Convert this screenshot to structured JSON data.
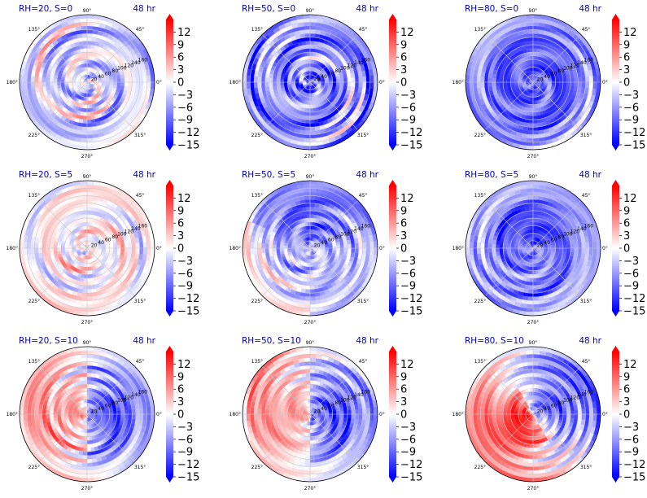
{
  "chart_data": {
    "type": "polar-heatmap-grid",
    "panels": [
      {
        "title_left": "RH=20, S=0",
        "title_right": "48 hr",
        "rh": 20,
        "s": 0,
        "pattern": "mixed_weak"
      },
      {
        "title_left": "RH=50, S=0",
        "title_right": "48 hr",
        "rh": 50,
        "s": 0,
        "pattern": "blue_spiral"
      },
      {
        "title_left": "RH=80, S=0",
        "title_right": "48 hr",
        "rh": 80,
        "s": 0,
        "pattern": "deep_blue"
      },
      {
        "title_left": "RH=20, S=5",
        "title_right": "48 hr",
        "rh": 20,
        "s": 5,
        "pattern": "pale_mixed"
      },
      {
        "title_left": "RH=50, S=5",
        "title_right": "48 hr",
        "rh": 50,
        "s": 5,
        "pattern": "blue_north_red_sw"
      },
      {
        "title_left": "RH=80, S=5",
        "title_right": "48 hr",
        "rh": 80,
        "s": 5,
        "pattern": "deep_blue_red_se"
      },
      {
        "title_left": "RH=20, S=10",
        "title_right": "48 hr",
        "rh": 20,
        "s": 10,
        "pattern": "red_west_blue_east"
      },
      {
        "title_left": "RH=50, S=10",
        "title_right": "48 hr",
        "rh": 50,
        "s": 10,
        "pattern": "red_west_blue_east"
      },
      {
        "title_left": "RH=80, S=10",
        "title_right": "48 hr",
        "rh": 80,
        "s": 10,
        "pattern": "red_sw_blue_ne"
      }
    ],
    "angle_tick_labels": [
      "0°",
      "45°",
      "90°",
      "135°",
      "180°",
      "225°",
      "270°",
      "315°"
    ],
    "radial_tick_labels": [
      "20",
      "40",
      "60",
      "80",
      "100",
      "120",
      "140",
      "160"
    ],
    "radial_range": [
      0,
      180
    ],
    "colorbar": {
      "ticks": [
        12,
        9,
        6,
        3,
        0,
        -3,
        -6,
        -9,
        -12,
        -15
      ],
      "tick_labels": [
        "12",
        "9",
        "6",
        "3",
        "0",
        "−3",
        "−6",
        "−9",
        "−12",
        "−15"
      ],
      "range": [
        -15,
        15
      ],
      "colormap": "bwr",
      "extend": "both"
    },
    "colors": {
      "min": "#0000ff",
      "mid": "#ffffff",
      "max": "#ff0000",
      "title": "#0000cc",
      "grid": "#c8c8c8",
      "axis": "#000000"
    }
  }
}
